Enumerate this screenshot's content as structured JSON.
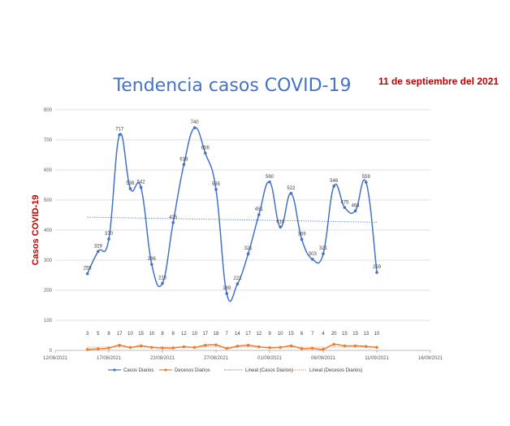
{
  "chart_data": {
    "type": "line",
    "title": "Tendencia casos COVID-19",
    "date_label": "11 de septiembre del 2021",
    "ylabel": "Casos COVID-19",
    "xlabel": "",
    "ylim": [
      0,
      800
    ],
    "yticks": [
      0,
      100,
      200,
      300,
      400,
      500,
      600,
      700,
      800
    ],
    "xlim": [
      0,
      35
    ],
    "xticks": [
      {
        "day": 0,
        "label": "12/08/2021"
      },
      {
        "day": 5,
        "label": "17/08/2021"
      },
      {
        "day": 10,
        "label": "22/08/2021"
      },
      {
        "day": 15,
        "label": "27/08/2021"
      },
      {
        "day": 20,
        "label": "01/09/2021"
      },
      {
        "day": 25,
        "label": "06/09/2021"
      },
      {
        "day": 30,
        "label": "11/09/2021"
      },
      {
        "day": 35,
        "label": "16/09/2021"
      }
    ],
    "grid": true,
    "series": [
      {
        "name": "Casos Diarios",
        "color": "#4472c4",
        "days": [
          3,
          4,
          5,
          6,
          7,
          8,
          9,
          10,
          11,
          12,
          13,
          14,
          15,
          16,
          17,
          18,
          19,
          20,
          21,
          22,
          23,
          24,
          25,
          26,
          27,
          28,
          29,
          30
        ],
        "values": [
          255,
          329,
          370,
          717,
          538,
          542,
          286,
          223,
          425,
          618,
          740,
          656,
          535,
          189,
          221,
          321,
          451,
          560,
          410,
          522,
          369,
          303,
          321,
          546,
          475,
          464,
          559,
          259
        ]
      },
      {
        "name": "Decesos Diarios",
        "color": "#ed7d31",
        "days": [
          3,
          4,
          5,
          6,
          7,
          8,
          9,
          10,
          11,
          12,
          13,
          14,
          15,
          16,
          17,
          18,
          19,
          20,
          21,
          22,
          23,
          24,
          25,
          26,
          27,
          28,
          29,
          30
        ],
        "values": [
          3,
          5,
          8,
          17,
          10,
          15,
          10,
          8,
          8,
          12,
          10,
          17,
          18,
          7,
          14,
          17,
          12,
          9,
          10,
          15,
          6,
          7,
          4,
          20,
          15,
          15,
          13,
          10
        ]
      }
    ],
    "trendlines": [
      {
        "name": "Lineal (Casos Diarios)",
        "color": "#4472c4",
        "from": {
          "day": 3,
          "value": 443
        },
        "to": {
          "day": 30,
          "value": 426
        }
      },
      {
        "name": "Lineal (Decesos Diarios)",
        "color": "#ed7d31",
        "from": {
          "day": 3,
          "value": 11
        },
        "to": {
          "day": 30,
          "value": 11
        }
      }
    ],
    "legend": [
      {
        "name": "Casos Diarios",
        "style": "line-marker",
        "color": "#4472c4"
      },
      {
        "name": "Decesos Diarios",
        "style": "line-marker",
        "color": "#ed7d31"
      },
      {
        "name": "Lineal (Casos Diarios)",
        "style": "dotted",
        "color": "#4472c4"
      },
      {
        "name": "Lineal (Decesos Diarios)",
        "style": "dotted",
        "color": "#ed7d31"
      }
    ],
    "legend_position": "bottom"
  }
}
